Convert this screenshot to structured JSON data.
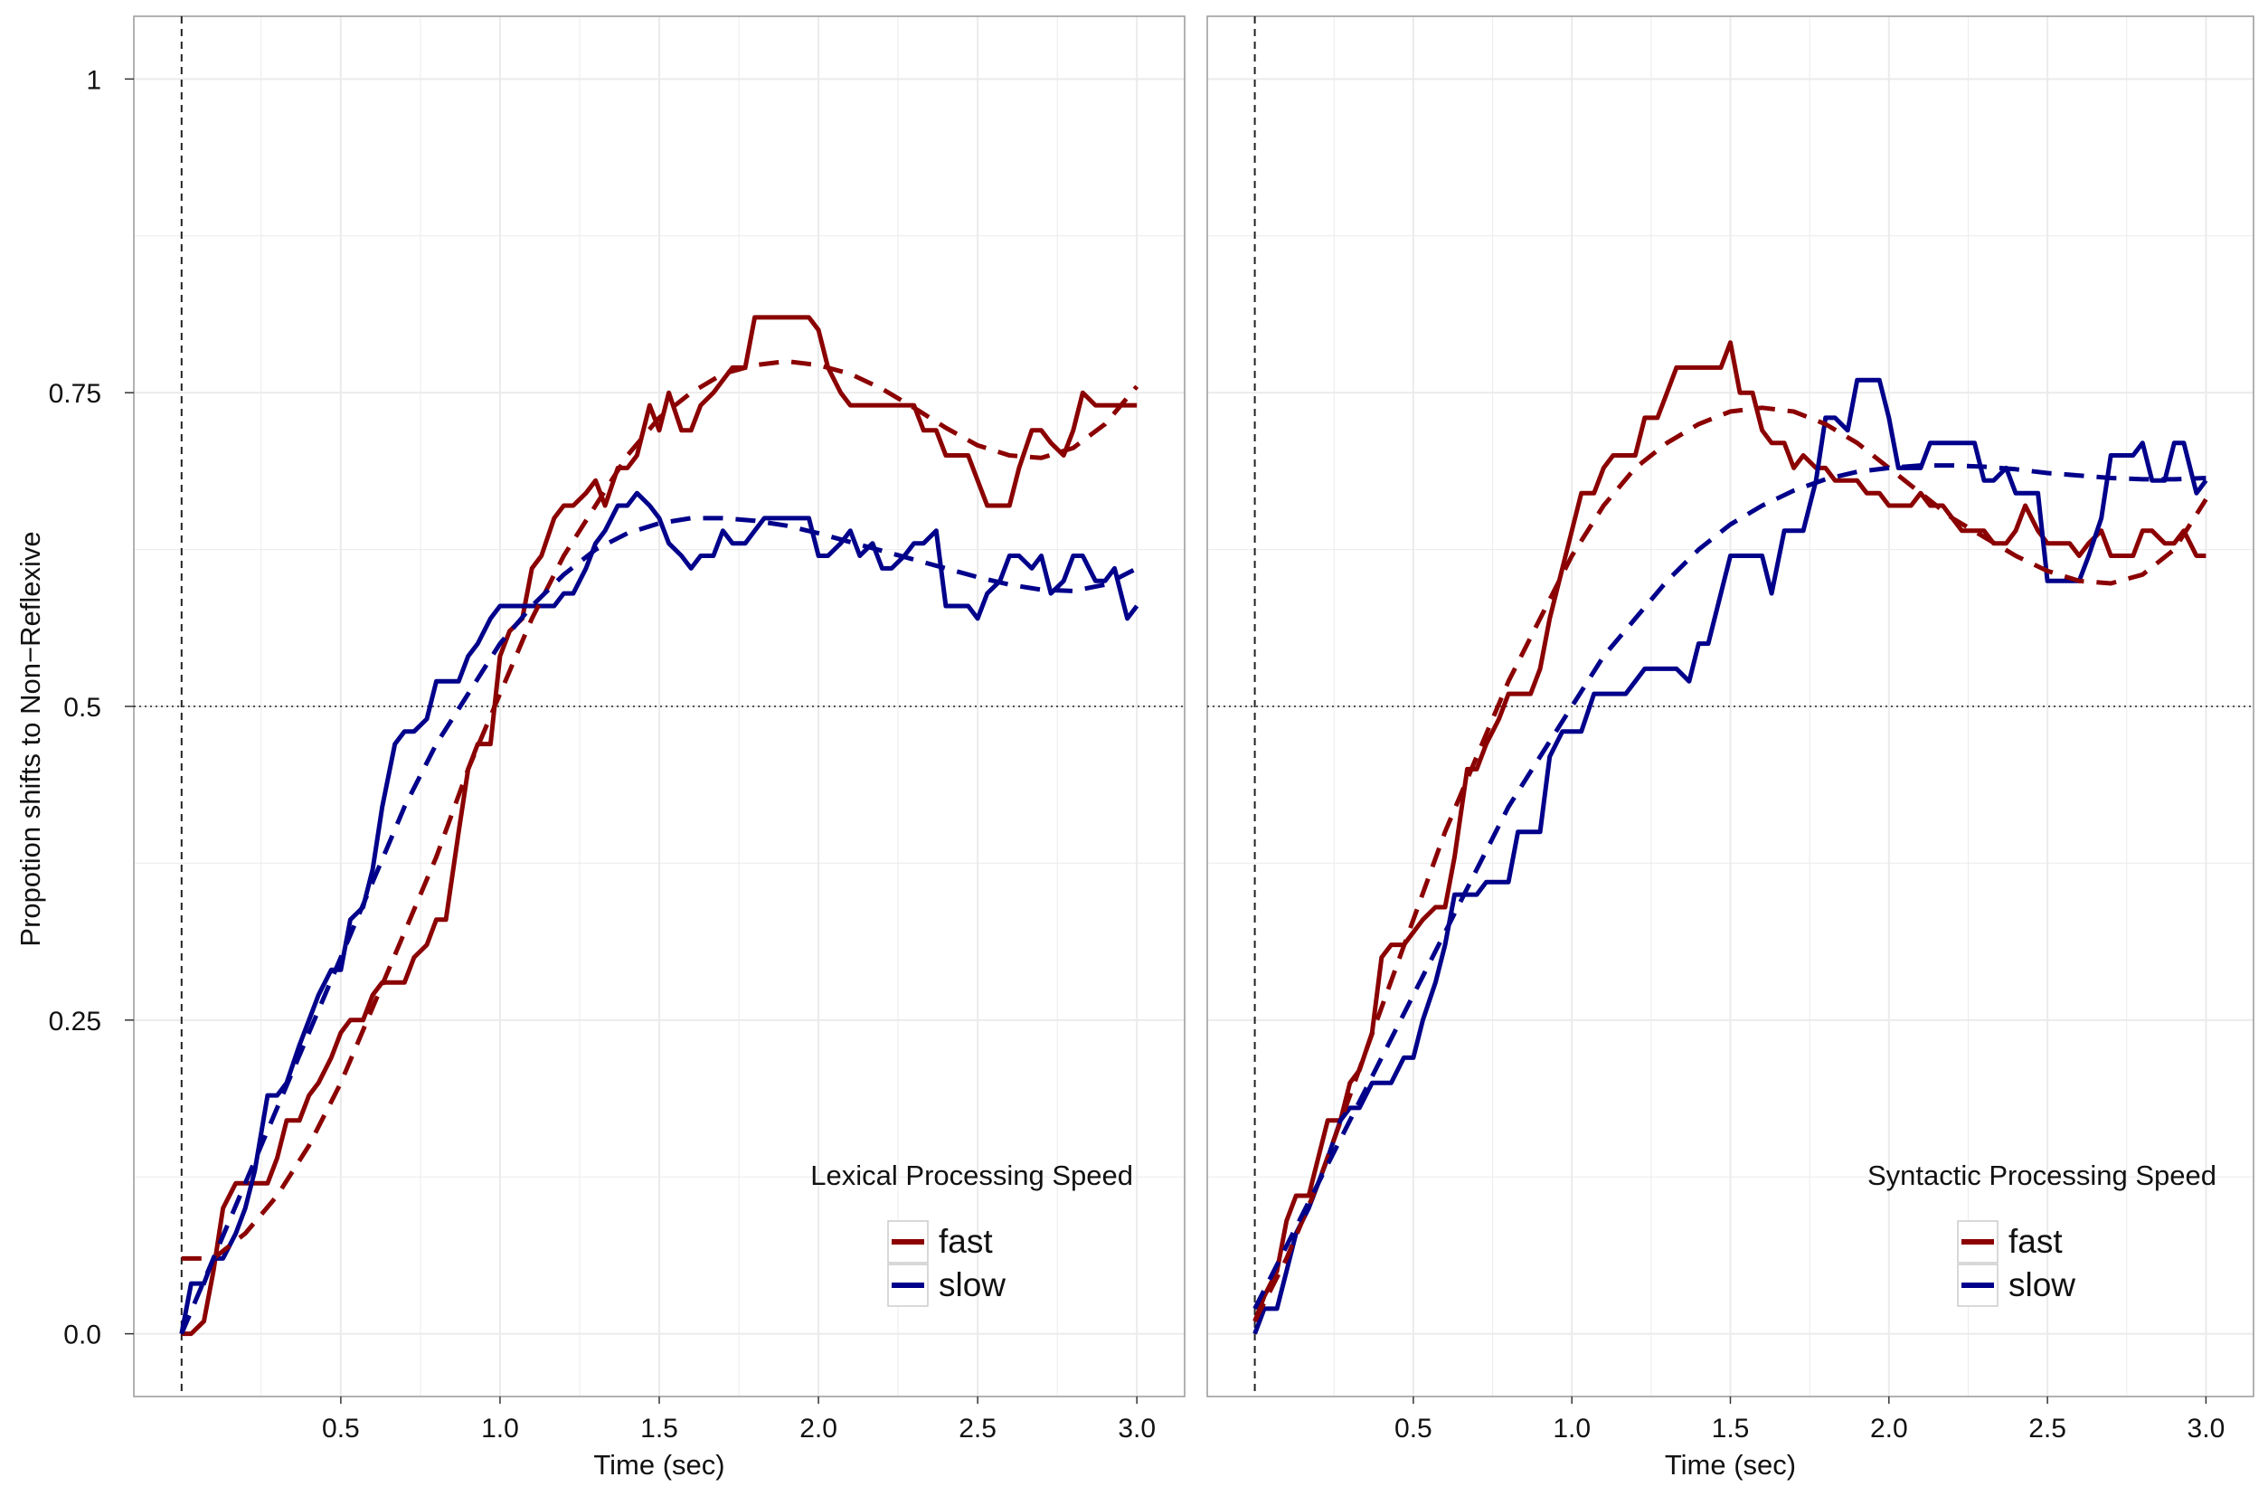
{
  "figure": {
    "ylabel": "Propotion shifts to Non−Reflexive",
    "xlabel": "Time (sec)",
    "y_ticks": [
      "0.0",
      "0.25",
      "0.5",
      "0.75",
      "1"
    ],
    "x_ticks": [
      "0.5",
      "1.0",
      "1.5",
      "2.0",
      "2.5",
      "3.0"
    ]
  },
  "colors": {
    "fast": "#8b0000",
    "slow": "#00008b",
    "reference_line": "#222222",
    "grid": "#ebebeb",
    "panel_border": "#999999"
  },
  "chart_data": [
    {
      "type": "line",
      "panel": "left",
      "legend_title": "Lexical Processing Speed",
      "legend_position": "bottom-right",
      "xlabel": "Time (sec)",
      "ylabel": "Propotion shifts to Non−Reflexive",
      "xlim": [
        -0.15,
        3.15
      ],
      "ylim": [
        -0.05,
        1.05
      ],
      "reference_lines": {
        "vertical_x": 0,
        "horizontal_y": 0.5
      },
      "grid": true,
      "series": [
        {
          "name": "fast",
          "style": "solid",
          "x": [
            0.0,
            0.03,
            0.07,
            0.1,
            0.13,
            0.17,
            0.2,
            0.23,
            0.27,
            0.3,
            0.33,
            0.37,
            0.4,
            0.43,
            0.47,
            0.5,
            0.53,
            0.57,
            0.6,
            0.63,
            0.67,
            0.7,
            0.73,
            0.77,
            0.8,
            0.83,
            0.87,
            0.9,
            0.93,
            0.97,
            1.0,
            1.03,
            1.07,
            1.1,
            1.13,
            1.17,
            1.2,
            1.23,
            1.27,
            1.3,
            1.33,
            1.37,
            1.4,
            1.43,
            1.47,
            1.5,
            1.53,
            1.57,
            1.6,
            1.63,
            1.67,
            1.7,
            1.73,
            1.77,
            1.8,
            1.83,
            1.87,
            1.9,
            1.93,
            1.97,
            2.0,
            2.03,
            2.07,
            2.1,
            2.13,
            2.17,
            2.2,
            2.23,
            2.27,
            2.3,
            2.33,
            2.37,
            2.4,
            2.43,
            2.47,
            2.5,
            2.53,
            2.57,
            2.6,
            2.63,
            2.67,
            2.7,
            2.73,
            2.77,
            2.8,
            2.83,
            2.87,
            2.9,
            2.93,
            2.97,
            3.0
          ],
          "values": [
            0.0,
            0.0,
            0.01,
            0.05,
            0.1,
            0.12,
            0.12,
            0.12,
            0.12,
            0.14,
            0.17,
            0.17,
            0.19,
            0.2,
            0.22,
            0.24,
            0.25,
            0.25,
            0.27,
            0.28,
            0.28,
            0.28,
            0.3,
            0.31,
            0.33,
            0.33,
            0.4,
            0.45,
            0.47,
            0.47,
            0.54,
            0.56,
            0.57,
            0.61,
            0.62,
            0.65,
            0.66,
            0.66,
            0.67,
            0.68,
            0.66,
            0.69,
            0.69,
            0.7,
            0.74,
            0.72,
            0.75,
            0.72,
            0.72,
            0.74,
            0.75,
            0.76,
            0.77,
            0.77,
            0.81,
            0.81,
            0.81,
            0.81,
            0.81,
            0.81,
            0.8,
            0.77,
            0.75,
            0.74,
            0.74,
            0.74,
            0.74,
            0.74,
            0.74,
            0.74,
            0.72,
            0.72,
            0.7,
            0.7,
            0.7,
            0.68,
            0.66,
            0.66,
            0.66,
            0.69,
            0.72,
            0.72,
            0.71,
            0.7,
            0.72,
            0.75,
            0.74,
            0.74,
            0.74,
            0.74,
            0.74
          ]
        },
        {
          "name": "slow",
          "style": "solid",
          "x": [
            0.0,
            0.03,
            0.07,
            0.1,
            0.13,
            0.17,
            0.2,
            0.23,
            0.27,
            0.3,
            0.33,
            0.37,
            0.4,
            0.43,
            0.47,
            0.5,
            0.53,
            0.57,
            0.6,
            0.63,
            0.67,
            0.7,
            0.73,
            0.77,
            0.8,
            0.83,
            0.87,
            0.9,
            0.93,
            0.97,
            1.0,
            1.03,
            1.07,
            1.1,
            1.13,
            1.17,
            1.2,
            1.23,
            1.27,
            1.3,
            1.33,
            1.37,
            1.4,
            1.43,
            1.47,
            1.5,
            1.53,
            1.57,
            1.6,
            1.63,
            1.67,
            1.7,
            1.73,
            1.77,
            1.8,
            1.83,
            1.87,
            1.9,
            1.93,
            1.97,
            2.0,
            2.03,
            2.07,
            2.1,
            2.13,
            2.17,
            2.2,
            2.23,
            2.27,
            2.3,
            2.33,
            2.37,
            2.4,
            2.43,
            2.47,
            2.5,
            2.53,
            2.57,
            2.6,
            2.63,
            2.67,
            2.7,
            2.73,
            2.77,
            2.8,
            2.83,
            2.87,
            2.9,
            2.93,
            2.97,
            3.0
          ],
          "values": [
            0.0,
            0.04,
            0.04,
            0.06,
            0.06,
            0.08,
            0.1,
            0.13,
            0.19,
            0.19,
            0.2,
            0.23,
            0.25,
            0.27,
            0.29,
            0.29,
            0.33,
            0.34,
            0.37,
            0.42,
            0.47,
            0.48,
            0.48,
            0.49,
            0.52,
            0.52,
            0.52,
            0.54,
            0.55,
            0.57,
            0.58,
            0.58,
            0.58,
            0.58,
            0.58,
            0.58,
            0.59,
            0.59,
            0.61,
            0.63,
            0.64,
            0.66,
            0.66,
            0.67,
            0.66,
            0.65,
            0.63,
            0.62,
            0.61,
            0.62,
            0.62,
            0.64,
            0.63,
            0.63,
            0.64,
            0.65,
            0.65,
            0.65,
            0.65,
            0.65,
            0.62,
            0.62,
            0.63,
            0.64,
            0.62,
            0.63,
            0.61,
            0.61,
            0.62,
            0.63,
            0.63,
            0.64,
            0.58,
            0.58,
            0.58,
            0.57,
            0.59,
            0.6,
            0.62,
            0.62,
            0.61,
            0.62,
            0.59,
            0.6,
            0.62,
            0.62,
            0.6,
            0.6,
            0.61,
            0.57,
            0.58
          ]
        },
        {
          "name": "fast",
          "style": "dashed",
          "x": [
            0.0,
            0.1,
            0.2,
            0.3,
            0.4,
            0.5,
            0.6,
            0.7,
            0.8,
            0.9,
            1.0,
            1.1,
            1.2,
            1.3,
            1.4,
            1.5,
            1.6,
            1.7,
            1.8,
            1.9,
            2.0,
            2.1,
            2.2,
            2.3,
            2.4,
            2.5,
            2.6,
            2.7,
            2.8,
            2.9,
            3.0
          ],
          "values": [
            0.06,
            0.06,
            0.08,
            0.11,
            0.15,
            0.2,
            0.26,
            0.32,
            0.38,
            0.45,
            0.51,
            0.57,
            0.62,
            0.66,
            0.7,
            0.73,
            0.75,
            0.765,
            0.772,
            0.775,
            0.772,
            0.765,
            0.753,
            0.738,
            0.722,
            0.708,
            0.7,
            0.698,
            0.706,
            0.725,
            0.755
          ]
        },
        {
          "name": "slow",
          "style": "dashed",
          "x": [
            0.0,
            0.1,
            0.2,
            0.3,
            0.4,
            0.5,
            0.6,
            0.7,
            0.8,
            0.9,
            1.0,
            1.1,
            1.2,
            1.3,
            1.4,
            1.5,
            1.6,
            1.7,
            1.8,
            1.9,
            2.0,
            2.1,
            2.2,
            2.3,
            2.4,
            2.5,
            2.6,
            2.7,
            2.8,
            2.9,
            3.0
          ],
          "values": [
            0.0,
            0.06,
            0.12,
            0.18,
            0.24,
            0.3,
            0.36,
            0.42,
            0.47,
            0.51,
            0.55,
            0.58,
            0.605,
            0.625,
            0.638,
            0.646,
            0.65,
            0.65,
            0.648,
            0.644,
            0.638,
            0.631,
            0.624,
            0.617,
            0.61,
            0.603,
            0.597,
            0.593,
            0.592,
            0.597,
            0.61
          ]
        }
      ]
    },
    {
      "type": "line",
      "panel": "right",
      "legend_title": "Syntactic Processing Speed",
      "legend_position": "bottom-right",
      "xlabel": "Time (sec)",
      "xlim": [
        -0.15,
        3.15
      ],
      "ylim": [
        -0.05,
        1.05
      ],
      "reference_lines": {
        "vertical_x": 0,
        "horizontal_y": 0.5
      },
      "grid": true,
      "series": [
        {
          "name": "fast",
          "style": "solid",
          "x": [
            0.0,
            0.03,
            0.07,
            0.1,
            0.13,
            0.17,
            0.2,
            0.23,
            0.27,
            0.3,
            0.33,
            0.37,
            0.4,
            0.43,
            0.47,
            0.5,
            0.53,
            0.57,
            0.6,
            0.63,
            0.67,
            0.7,
            0.73,
            0.77,
            0.8,
            0.83,
            0.87,
            0.9,
            0.93,
            0.97,
            1.0,
            1.03,
            1.07,
            1.1,
            1.13,
            1.17,
            1.2,
            1.23,
            1.27,
            1.3,
            1.33,
            1.37,
            1.4,
            1.43,
            1.47,
            1.5,
            1.53,
            1.57,
            1.6,
            1.63,
            1.67,
            1.7,
            1.73,
            1.77,
            1.8,
            1.83,
            1.87,
            1.9,
            1.93,
            1.97,
            2.0,
            2.03,
            2.07,
            2.1,
            2.13,
            2.17,
            2.2,
            2.23,
            2.27,
            2.3,
            2.33,
            2.37,
            2.4,
            2.43,
            2.47,
            2.5,
            2.53,
            2.57,
            2.6,
            2.63,
            2.67,
            2.7,
            2.73,
            2.77,
            2.8,
            2.83,
            2.87,
            2.9,
            2.93,
            2.97,
            3.0
          ],
          "values": [
            0.01,
            0.03,
            0.05,
            0.09,
            0.11,
            0.11,
            0.14,
            0.17,
            0.17,
            0.2,
            0.21,
            0.24,
            0.3,
            0.31,
            0.31,
            0.32,
            0.33,
            0.34,
            0.34,
            0.38,
            0.45,
            0.45,
            0.47,
            0.49,
            0.51,
            0.51,
            0.51,
            0.53,
            0.57,
            0.61,
            0.64,
            0.67,
            0.67,
            0.69,
            0.7,
            0.7,
            0.7,
            0.73,
            0.73,
            0.75,
            0.77,
            0.77,
            0.77,
            0.77,
            0.77,
            0.79,
            0.75,
            0.75,
            0.72,
            0.71,
            0.71,
            0.69,
            0.7,
            0.69,
            0.69,
            0.68,
            0.68,
            0.68,
            0.67,
            0.67,
            0.66,
            0.66,
            0.66,
            0.67,
            0.66,
            0.66,
            0.65,
            0.64,
            0.64,
            0.64,
            0.63,
            0.63,
            0.64,
            0.66,
            0.64,
            0.63,
            0.63,
            0.63,
            0.62,
            0.63,
            0.64,
            0.62,
            0.62,
            0.62,
            0.64,
            0.64,
            0.63,
            0.63,
            0.64,
            0.62,
            0.62
          ]
        },
        {
          "name": "slow",
          "style": "solid",
          "x": [
            0.0,
            0.03,
            0.07,
            0.1,
            0.13,
            0.17,
            0.2,
            0.23,
            0.27,
            0.3,
            0.33,
            0.37,
            0.4,
            0.43,
            0.47,
            0.5,
            0.53,
            0.57,
            0.6,
            0.63,
            0.67,
            0.7,
            0.73,
            0.77,
            0.8,
            0.83,
            0.87,
            0.9,
            0.93,
            0.97,
            1.0,
            1.03,
            1.07,
            1.1,
            1.13,
            1.17,
            1.2,
            1.23,
            1.27,
            1.3,
            1.33,
            1.37,
            1.4,
            1.43,
            1.47,
            1.5,
            1.53,
            1.57,
            1.6,
            1.63,
            1.67,
            1.7,
            1.73,
            1.77,
            1.8,
            1.83,
            1.87,
            1.9,
            1.93,
            1.97,
            2.0,
            2.03,
            2.07,
            2.1,
            2.13,
            2.17,
            2.2,
            2.23,
            2.27,
            2.3,
            2.33,
            2.37,
            2.4,
            2.43,
            2.47,
            2.5,
            2.53,
            2.57,
            2.6,
            2.63,
            2.67,
            2.7,
            2.73,
            2.77,
            2.8,
            2.83,
            2.87,
            2.9,
            2.93,
            2.97,
            3.0
          ],
          "values": [
            0.0,
            0.02,
            0.02,
            0.05,
            0.08,
            0.1,
            0.12,
            0.14,
            0.17,
            0.18,
            0.18,
            0.2,
            0.2,
            0.2,
            0.22,
            0.22,
            0.25,
            0.28,
            0.31,
            0.35,
            0.35,
            0.35,
            0.36,
            0.36,
            0.36,
            0.4,
            0.4,
            0.4,
            0.46,
            0.48,
            0.48,
            0.48,
            0.51,
            0.51,
            0.51,
            0.51,
            0.52,
            0.53,
            0.53,
            0.53,
            0.53,
            0.52,
            0.55,
            0.55,
            0.59,
            0.62,
            0.62,
            0.62,
            0.62,
            0.59,
            0.64,
            0.64,
            0.64,
            0.68,
            0.73,
            0.73,
            0.72,
            0.76,
            0.76,
            0.76,
            0.73,
            0.69,
            0.69,
            0.69,
            0.71,
            0.71,
            0.71,
            0.71,
            0.71,
            0.68,
            0.68,
            0.69,
            0.67,
            0.67,
            0.67,
            0.6,
            0.6,
            0.6,
            0.6,
            0.62,
            0.65,
            0.7,
            0.7,
            0.7,
            0.71,
            0.68,
            0.68,
            0.71,
            0.71,
            0.67,
            0.68
          ]
        },
        {
          "name": "fast",
          "style": "dashed",
          "x": [
            0.0,
            0.1,
            0.2,
            0.3,
            0.4,
            0.5,
            0.6,
            0.7,
            0.8,
            0.9,
            1.0,
            1.1,
            1.2,
            1.3,
            1.4,
            1.5,
            1.6,
            1.7,
            1.8,
            1.9,
            2.0,
            2.1,
            2.2,
            2.3,
            2.4,
            2.5,
            2.6,
            2.7,
            2.8,
            2.9,
            3.0
          ],
          "values": [
            0.01,
            0.06,
            0.12,
            0.19,
            0.26,
            0.33,
            0.4,
            0.46,
            0.52,
            0.57,
            0.62,
            0.66,
            0.69,
            0.71,
            0.725,
            0.735,
            0.738,
            0.735,
            0.725,
            0.71,
            0.69,
            0.67,
            0.65,
            0.635,
            0.62,
            0.608,
            0.6,
            0.598,
            0.605,
            0.625,
            0.665
          ]
        },
        {
          "name": "slow",
          "style": "dashed",
          "x": [
            0.0,
            0.1,
            0.2,
            0.3,
            0.4,
            0.5,
            0.6,
            0.7,
            0.8,
            0.9,
            1.0,
            1.1,
            1.2,
            1.3,
            1.4,
            1.5,
            1.6,
            1.7,
            1.8,
            1.9,
            2.0,
            2.1,
            2.2,
            2.3,
            2.4,
            2.5,
            2.6,
            2.7,
            2.8,
            2.9,
            3.0
          ],
          "values": [
            0.02,
            0.07,
            0.12,
            0.17,
            0.22,
            0.27,
            0.32,
            0.37,
            0.42,
            0.46,
            0.5,
            0.54,
            0.57,
            0.6,
            0.625,
            0.645,
            0.66,
            0.672,
            0.681,
            0.687,
            0.69,
            0.692,
            0.692,
            0.691,
            0.689,
            0.686,
            0.684,
            0.682,
            0.681,
            0.681,
            0.682
          ]
        }
      ]
    }
  ]
}
